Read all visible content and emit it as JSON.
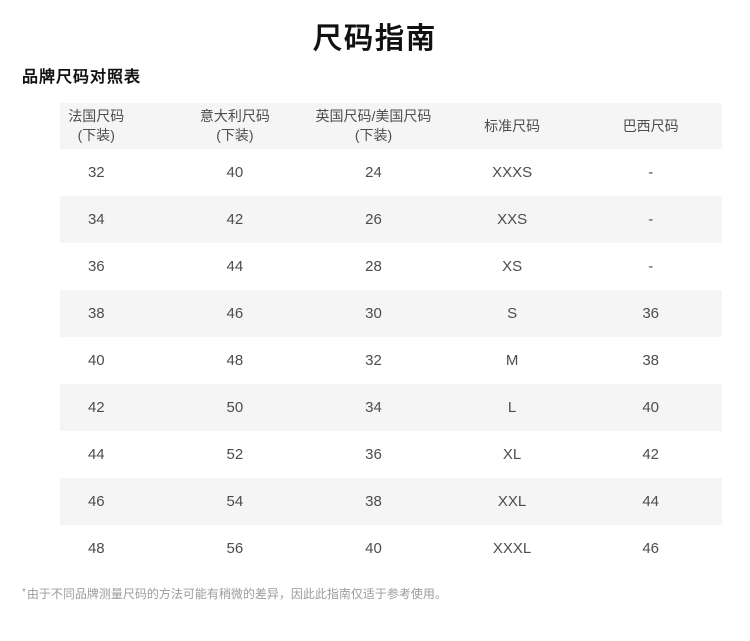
{
  "page": {
    "title": "尺码指南",
    "section_title": "品牌尺码对照表",
    "footnote_mark": "*",
    "footnote_text": "由于不同品牌测量尺码的方法可能有稍微的差异，因此此指南仅适于参考使用。"
  },
  "colors": {
    "header_bg": "#f5f5f6",
    "row_alt_bg": "#f5f5f6",
    "text_primary": "#111111",
    "text_table": "#4d4d4d",
    "text_footnote": "#9b9b9b"
  },
  "table": {
    "columns": [
      {
        "label": "法国尺码",
        "sublabel": "(下装)"
      },
      {
        "label": "意大利尺码",
        "sublabel": "(下装)"
      },
      {
        "label": "英国尺码/美国尺码",
        "sublabel": "(下装)"
      },
      {
        "label": "标准尺码",
        "sublabel": ""
      },
      {
        "label": "巴西尺码",
        "sublabel": ""
      }
    ],
    "rows": [
      [
        "32",
        "40",
        "24",
        "XXXS",
        "-"
      ],
      [
        "34",
        "42",
        "26",
        "XXS",
        "-"
      ],
      [
        "36",
        "44",
        "28",
        "XS",
        "-"
      ],
      [
        "38",
        "46",
        "30",
        "S",
        "36"
      ],
      [
        "40",
        "48",
        "32",
        "M",
        "38"
      ],
      [
        "42",
        "50",
        "34",
        "L",
        "40"
      ],
      [
        "44",
        "52",
        "36",
        "XL",
        "42"
      ],
      [
        "46",
        "54",
        "38",
        "XXL",
        "44"
      ],
      [
        "48",
        "56",
        "40",
        "XXXL",
        "46"
      ]
    ]
  }
}
